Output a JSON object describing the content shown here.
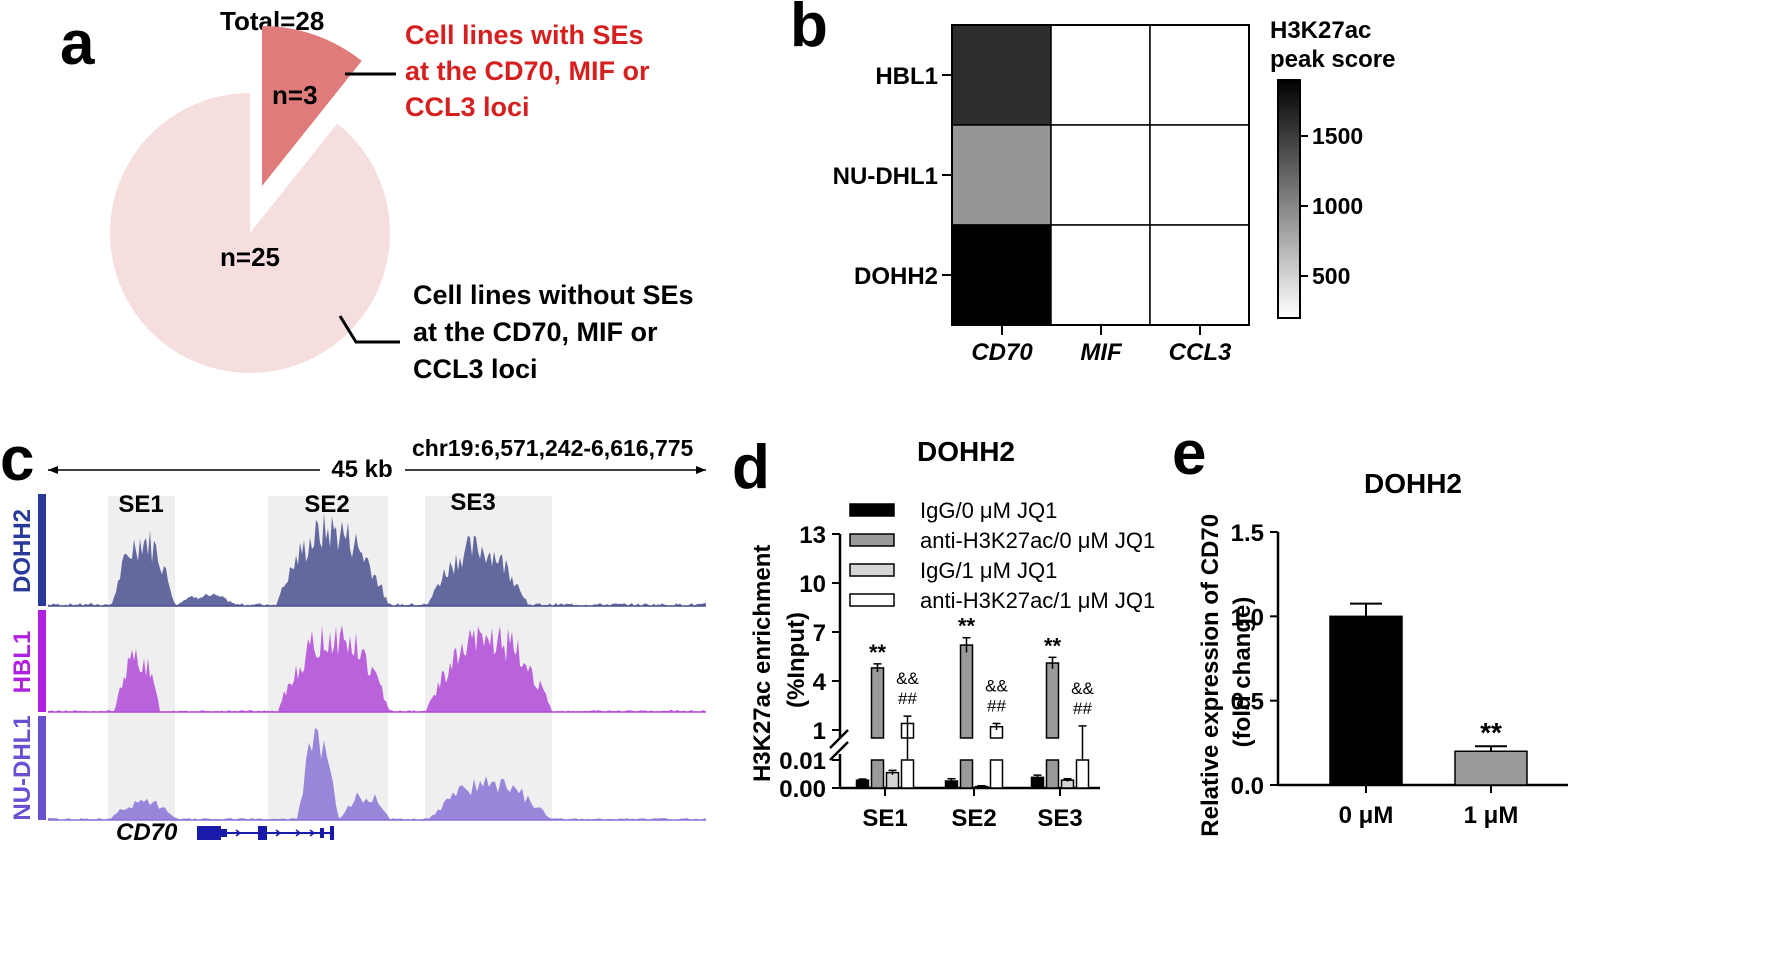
{
  "panel_labels": [
    "a",
    "b",
    "c",
    "d",
    "e"
  ],
  "colors": {
    "pie_major": "#f6dede",
    "pie_minor": "#e07b7b",
    "highlight_text": "#d62020",
    "heat_high": "#000000",
    "heat_low": "#ffffff",
    "se_shade": "#efefef",
    "track_dohh2": "#4a5090",
    "track_hbl1": "#b048d8",
    "track_nudhl1": "#8a72d6",
    "gene": "#1a1aa8",
    "bar_black": "#000000",
    "bar_gray": "#9a9a9a",
    "bar_light": "#d6d6d6",
    "bar_white": "#ffffff"
  },
  "chart_data": [
    {
      "panel": "a",
      "type": "pie",
      "title": "Total=28",
      "slices": [
        {
          "label": "n=3",
          "value": 3,
          "annotation": [
            "Cell lines with SEs",
            "at the CD70, MIF or",
            "CCL3 loci"
          ]
        },
        {
          "label": "n=25",
          "value": 25,
          "annotation": [
            "Cell lines without SEs",
            "at the CD70, MIF or",
            "CCL3 loci"
          ]
        }
      ]
    },
    {
      "panel": "b",
      "type": "heatmap",
      "rows": [
        "HBL1",
        "NU-DHL1",
        "DOHH2"
      ],
      "columns": [
        "CD70",
        "MIF",
        "CCL3"
      ],
      "values": [
        [
          1600,
          0,
          0
        ],
        [
          900,
          0,
          0
        ],
        [
          1900,
          0,
          0
        ]
      ],
      "colorbar_title": [
        "H3K27ac",
        "peak score"
      ],
      "colorbar_range": [
        200,
        1900
      ],
      "colorbar_ticks": [
        500,
        1000,
        1500
      ]
    },
    {
      "panel": "c",
      "type": "area",
      "scale_label": "45 kb",
      "coordinates": "chr19:6,571,242-6,616,775",
      "regions": [
        "SE1",
        "SE2",
        "SE3"
      ],
      "tracks": [
        "DOHH2",
        "HBL1",
        "NU-DHL1"
      ],
      "gene": "CD70"
    },
    {
      "panel": "d",
      "type": "bar",
      "title": "DOHH2",
      "ylabel": [
        "H3K27ac enrichment",
        "(%Input)"
      ],
      "categories": [
        "SE1",
        "SE2",
        "SE3"
      ],
      "yticks_upper": [
        "13",
        "10",
        "7",
        "4",
        "1"
      ],
      "yticks_lower": [
        "0.01",
        "0.00"
      ],
      "upper_range": [
        1,
        13
      ],
      "lower_range": [
        0,
        0.01
      ],
      "series": [
        {
          "name": "IgG/0 μM JQ1",
          "values": [
            0.0028,
            0.0025,
            0.0038
          ],
          "errors": [
            0.0004,
            0.0008,
            0.0008
          ]
        },
        {
          "name": "anti-H3K27ac/0 μM JQ1",
          "values": [
            4.8,
            6.2,
            5.1
          ],
          "errors": [
            0.25,
            0.45,
            0.35
          ]
        },
        {
          "name": "IgG/1 μM JQ1",
          "values": [
            0.0055,
            0.0005,
            0.0028
          ],
          "errors": [
            0.0008,
            0.0003,
            0.0005
          ]
        },
        {
          "name": "anti-H3K27ac/1 μM JQ1",
          "values": [
            1.4,
            1.2,
            0.9
          ],
          "errors": [
            0.45,
            0.2,
            0.35
          ]
        }
      ],
      "annotations": {
        "star": "**",
        "amp": "&&",
        "hash": "##"
      }
    },
    {
      "panel": "e",
      "type": "bar",
      "title": "DOHH2",
      "ylabel": [
        "Relative expression of CD70",
        "(fold change)"
      ],
      "categories": [
        "0 μM",
        "1 μM"
      ],
      "values": [
        1.0,
        0.2
      ],
      "errors": [
        0.075,
        0.03
      ],
      "ylim": [
        0,
        1.5
      ],
      "yticks": [
        "0.0",
        "0.5",
        "1.0",
        "1.5"
      ],
      "significance": "**"
    }
  ]
}
